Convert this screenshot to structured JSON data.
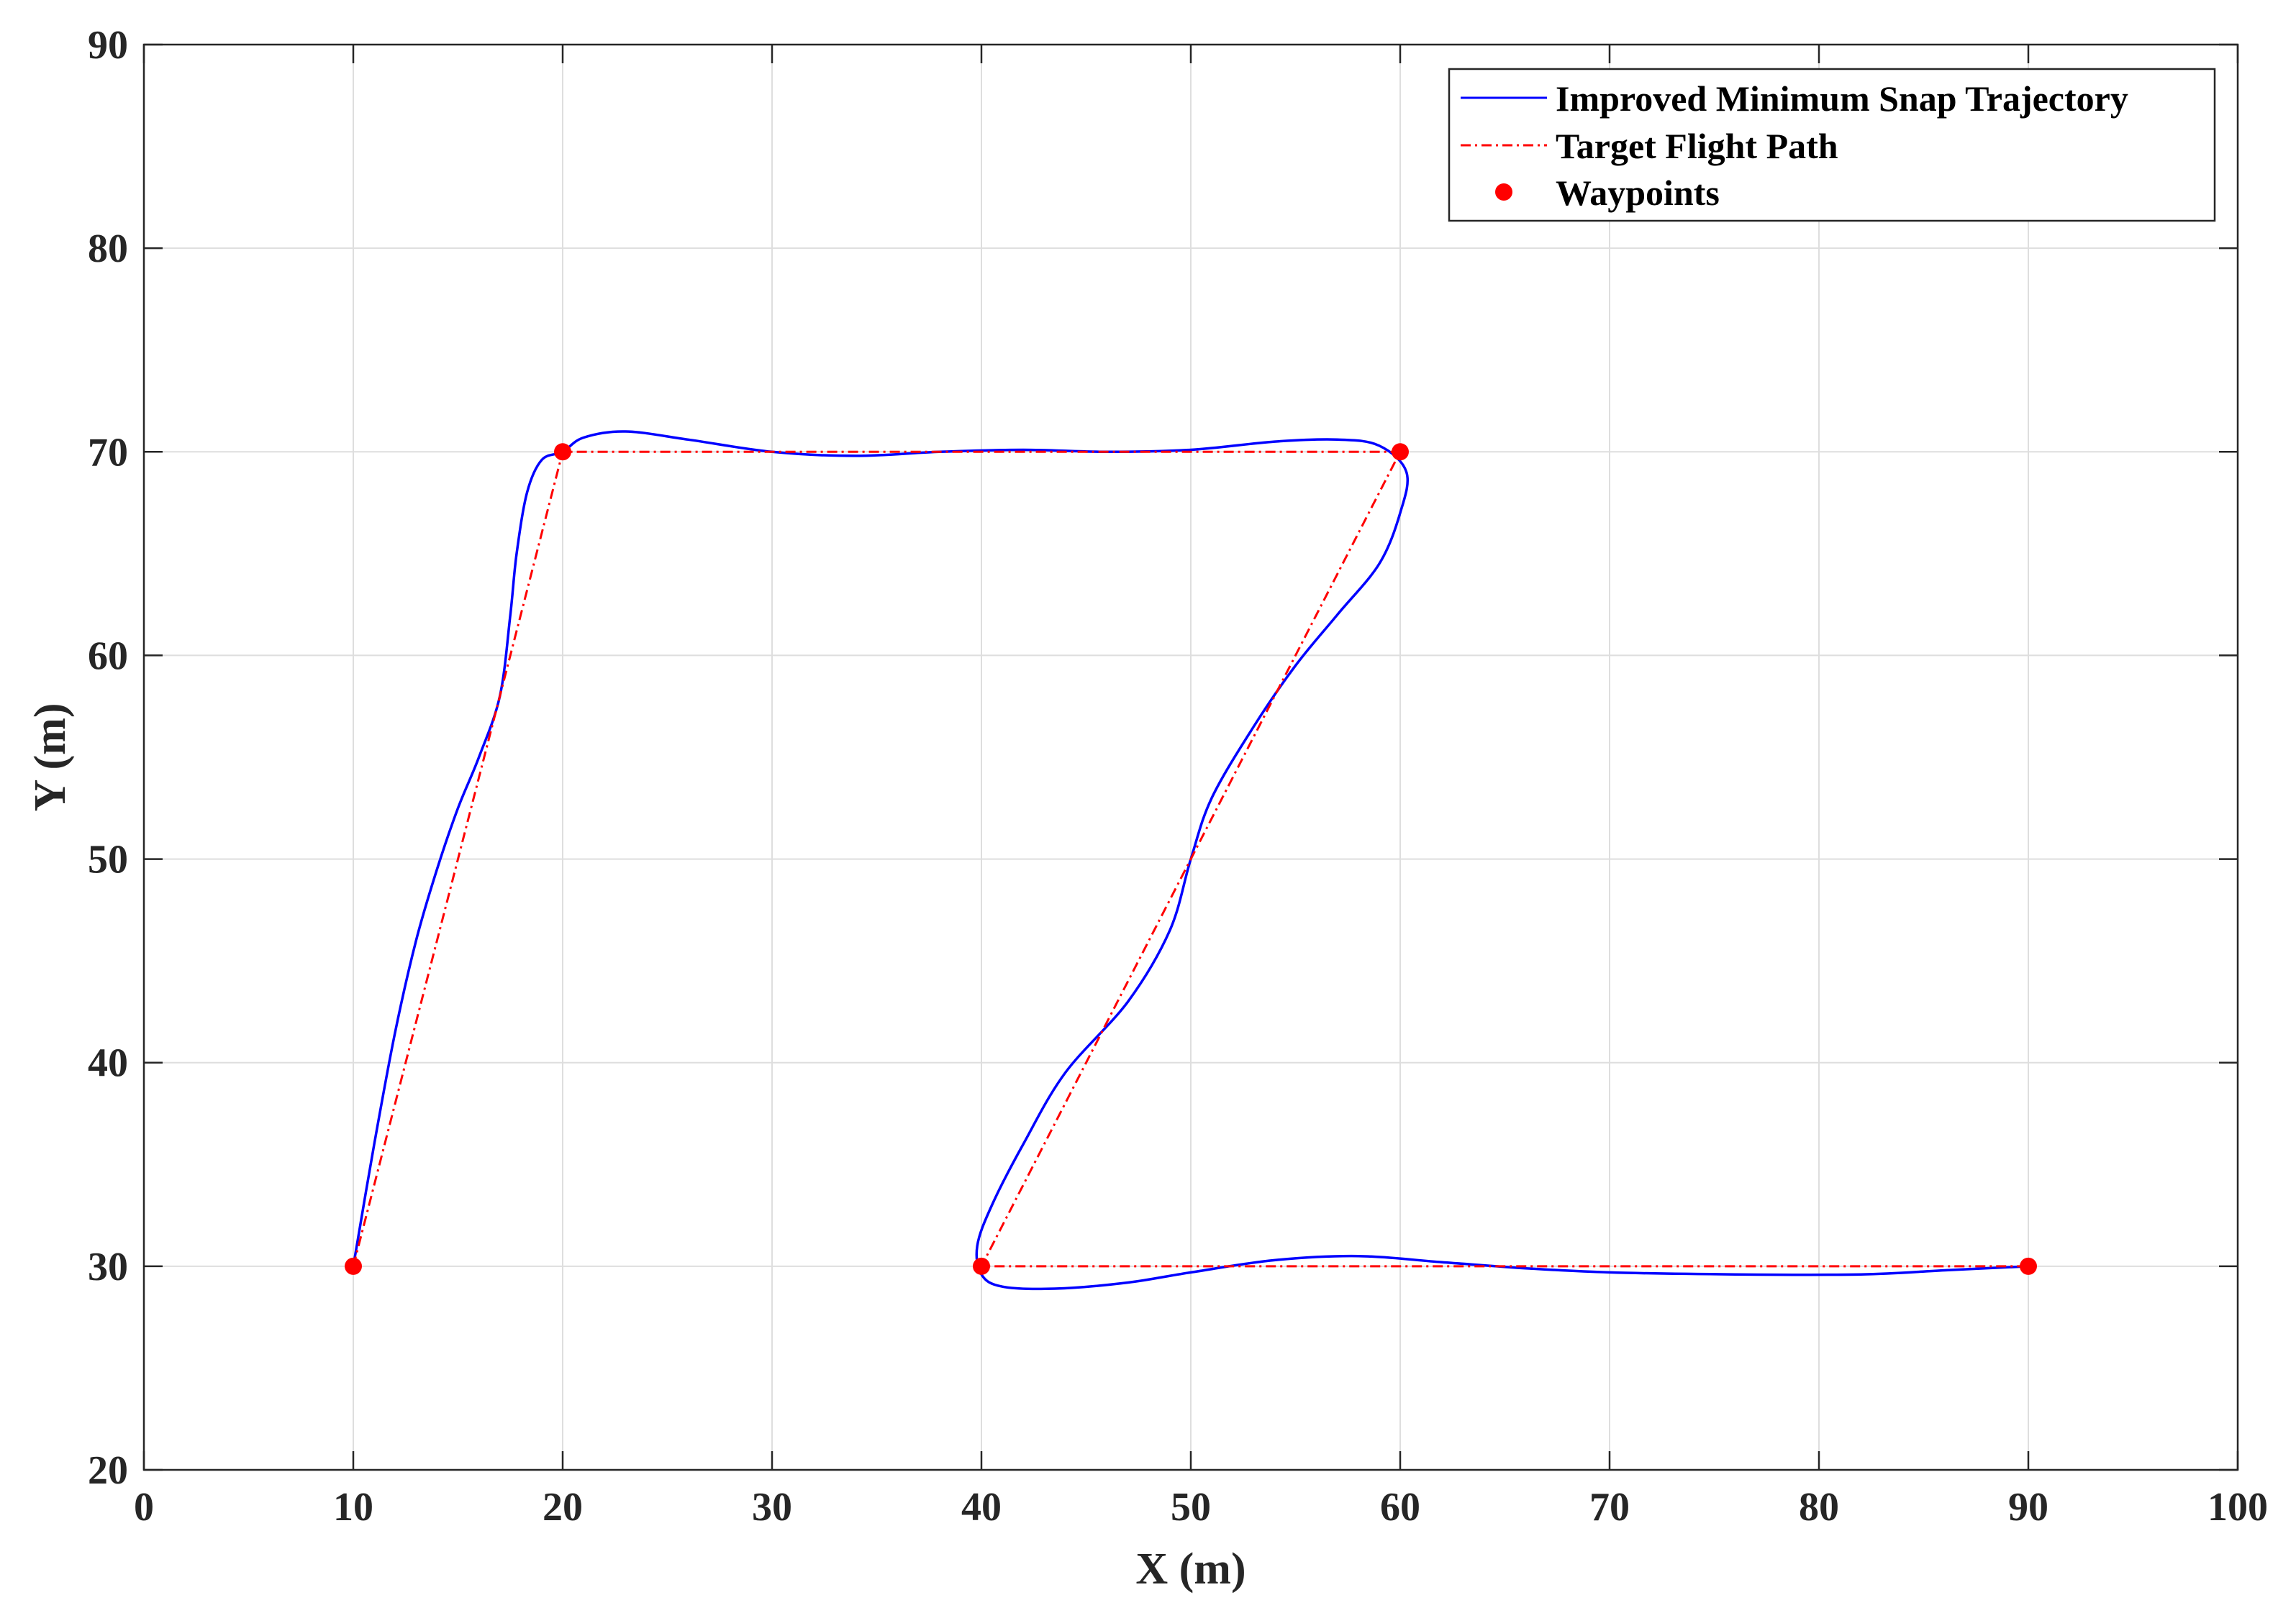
{
  "chart_data": {
    "type": "line",
    "xlabel": "X (m)",
    "ylabel": "Y (m)",
    "xlim": [
      0,
      100
    ],
    "ylim": [
      20,
      90
    ],
    "xticks": [
      0,
      10,
      20,
      30,
      40,
      50,
      60,
      70,
      80,
      90,
      100
    ],
    "yticks": [
      20,
      30,
      40,
      50,
      60,
      70,
      80,
      90
    ],
    "grid": true,
    "legend_position": "top-right",
    "series": [
      {
        "name": "Improved Minimum Snap Trajectory",
        "style": "solid",
        "color": "#0000ff",
        "x": [
          10,
          11,
          12,
          13,
          14,
          15,
          16,
          17,
          17.5,
          17.8,
          18.3,
          19,
          20,
          21,
          23,
          26,
          30,
          34,
          38,
          42,
          46,
          50,
          54,
          57,
          59,
          60.3,
          60,
          59,
          57,
          55,
          53,
          51,
          50,
          49,
          47,
          44,
          42,
          40.5,
          39.8,
          40,
          41,
          43.5,
          47,
          50,
          54,
          58,
          62,
          66,
          70,
          76,
          82,
          86,
          90
        ],
        "y": [
          30,
          36,
          41.5,
          46,
          49.5,
          52.5,
          55,
          58,
          62,
          65,
          68,
          69.6,
          70,
          70.7,
          71,
          70.6,
          70,
          69.8,
          70,
          70.1,
          70,
          70.1,
          70.5,
          70.6,
          70.3,
          69,
          67,
          64.5,
          62,
          59.5,
          56.5,
          53,
          50,
          46.5,
          43,
          39.5,
          36,
          33,
          31,
          29.6,
          29,
          28.9,
          29.2,
          29.7,
          30.3,
          30.5,
          30.2,
          29.9,
          29.7,
          29.6,
          29.6,
          29.8,
          30
        ]
      },
      {
        "name": "Target Flight Path",
        "style": "dash-dot",
        "color": "#ff0000",
        "x": [
          10,
          20,
          60,
          40,
          90
        ],
        "y": [
          30,
          70,
          70,
          30,
          30
        ]
      },
      {
        "name": "Waypoints",
        "style": "markers",
        "color": "#ff0000",
        "x": [
          10,
          20,
          60,
          40,
          90
        ],
        "y": [
          30,
          70,
          70,
          30,
          30
        ]
      }
    ]
  }
}
